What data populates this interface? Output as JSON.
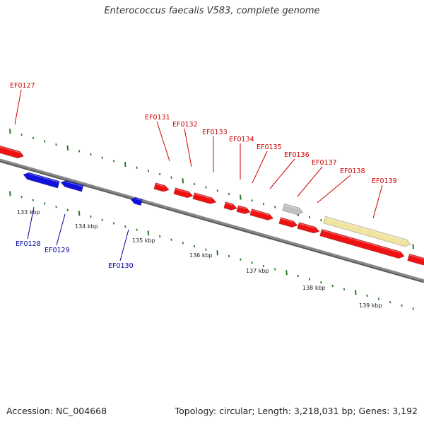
{
  "title": "Enterococcus faecalis V583, complete genome",
  "footer": {
    "accession": "Accession: NC_004668",
    "topology": "Topology: circular; Length: 3,218,031 bp; Genes: 3,192"
  },
  "colors": {
    "forward_gene": "#ee1111",
    "reverse_gene": "#1111dd",
    "other_feature_gray": "#c0c0c0",
    "other_feature_yellow": "#efe4a2",
    "backbone": "#8a8a8a",
    "tick": "#2a7a2a",
    "forward_label": "#cc0000",
    "reverse_label": "#000099"
  },
  "kbp_labels": [
    "133 kbp",
    "134 kbp",
    "135 kbp",
    "136 kbp",
    "137 kbp",
    "138 kbp",
    "139 kbp"
  ],
  "gene_labels": [
    "EF0127",
    "EF0128",
    "EF0129",
    "EF0130",
    "EF0131",
    "EF0132",
    "EF0133",
    "EF0134",
    "EF0135",
    "EF0136",
    "EF0137",
    "EF0138",
    "EF0139"
  ]
}
